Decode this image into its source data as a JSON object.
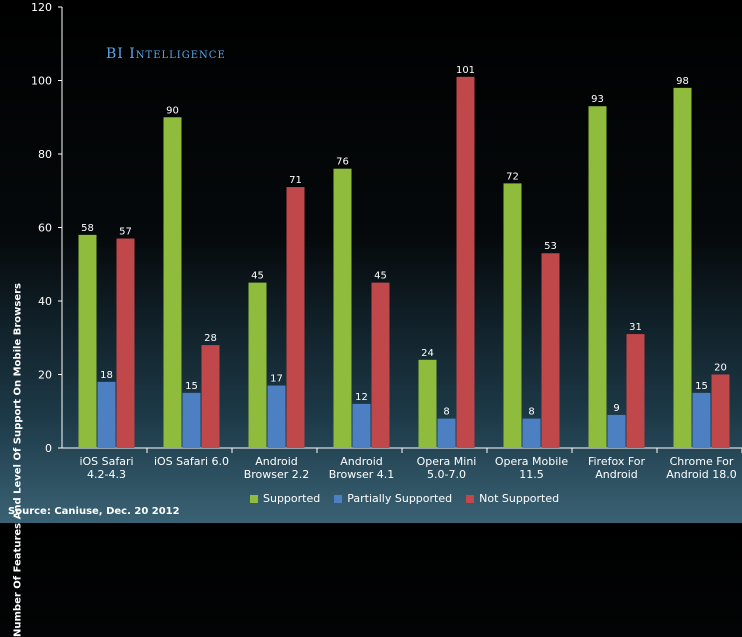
{
  "branding": "BI Intelligence",
  "source": "Source: Caniuse, Dec. 20 2012",
  "chart_data": {
    "type": "bar",
    "title": "",
    "xlabel": "",
    "ylabel": "Number Of Features And Level Of Support On Mobile Browsers",
    "ylim": [
      0,
      120
    ],
    "yticks": [
      0,
      20,
      40,
      60,
      80,
      100,
      120
    ],
    "grid": false,
    "legend_position": "bottom",
    "categories": [
      [
        "iOS Safari",
        "4.2-4.3"
      ],
      [
        "iOS Safari 6.0"
      ],
      [
        "Android",
        "Browser 2.2"
      ],
      [
        "Android",
        "Browser 4.1"
      ],
      [
        "Opera Mini",
        "5.0-7.0"
      ],
      [
        "Opera Mobile",
        "11.5"
      ],
      [
        "Firefox For",
        "Android"
      ],
      [
        "Chrome For",
        "Android 18.0"
      ]
    ],
    "series": [
      {
        "name": "Supported",
        "color": "#8fbc3c",
        "values": [
          58,
          90,
          45,
          76,
          24,
          72,
          93,
          98
        ]
      },
      {
        "name": "Partially Supported",
        "color": "#4d80c2",
        "values": [
          18,
          15,
          17,
          12,
          8,
          8,
          9,
          15
        ]
      },
      {
        "name": "Not Supported",
        "color": "#c0474a",
        "values": [
          57,
          28,
          71,
          45,
          101,
          53,
          31,
          20
        ]
      }
    ]
  }
}
